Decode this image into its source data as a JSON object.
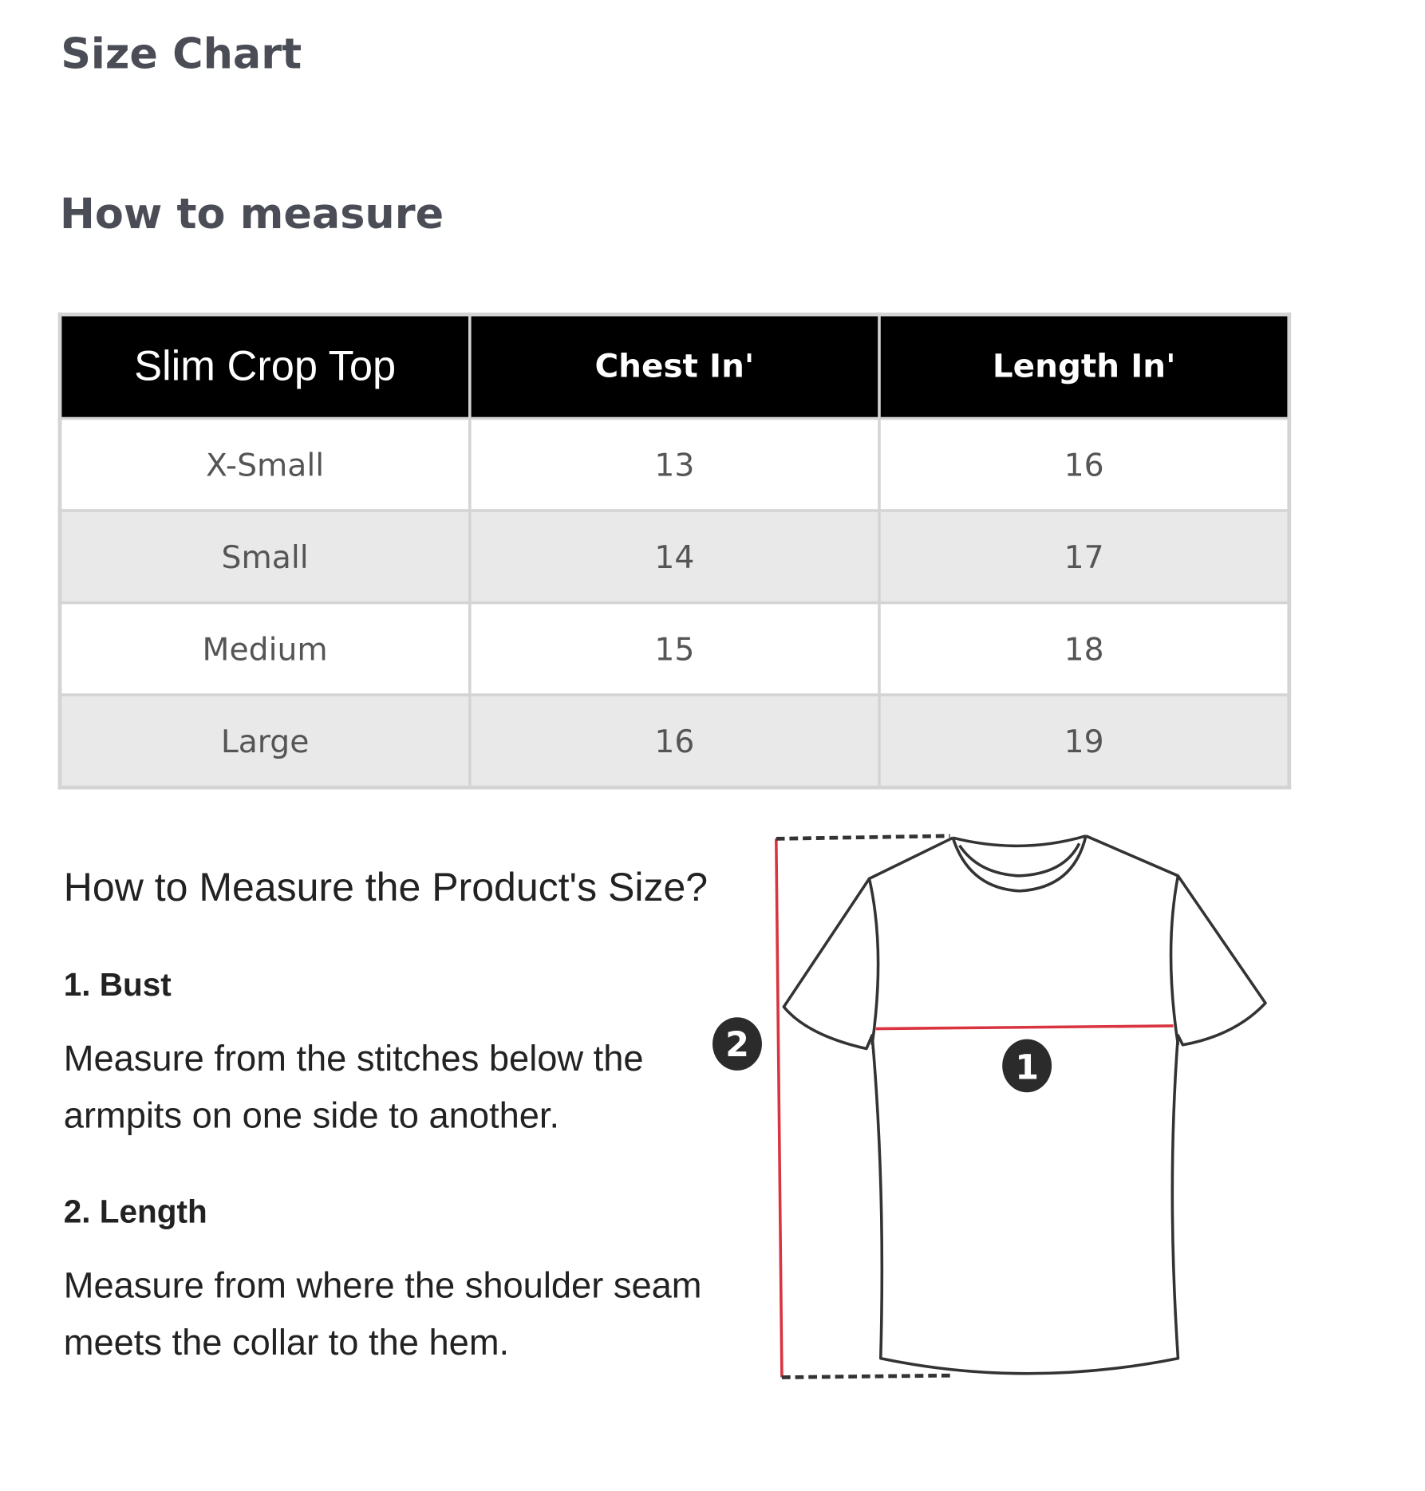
{
  "title": "Size Chart",
  "subtitle": "How to measure",
  "table": {
    "headers": [
      "Slim Crop Top",
      "Chest In'",
      "Length In'"
    ],
    "rows": [
      [
        "X-Small",
        "13",
        "16"
      ],
      [
        "Small",
        "14",
        "17"
      ],
      [
        "Medium",
        "15",
        "18"
      ],
      [
        "Large",
        "16",
        "19"
      ]
    ]
  },
  "guide": {
    "question": "How to Measure the Product's Size?",
    "steps": [
      {
        "heading": "1. Bust",
        "text": "Measure from the stitches below the armpits on one side to another."
      },
      {
        "heading": "2. Length",
        "text": "Measure from where the shoulder seam meets the collar to the hem."
      }
    ],
    "diagram": {
      "marker_1": "1",
      "marker_2": "2",
      "icon": "t-shirt-icon",
      "measure_color": "#d9343f"
    }
  }
}
